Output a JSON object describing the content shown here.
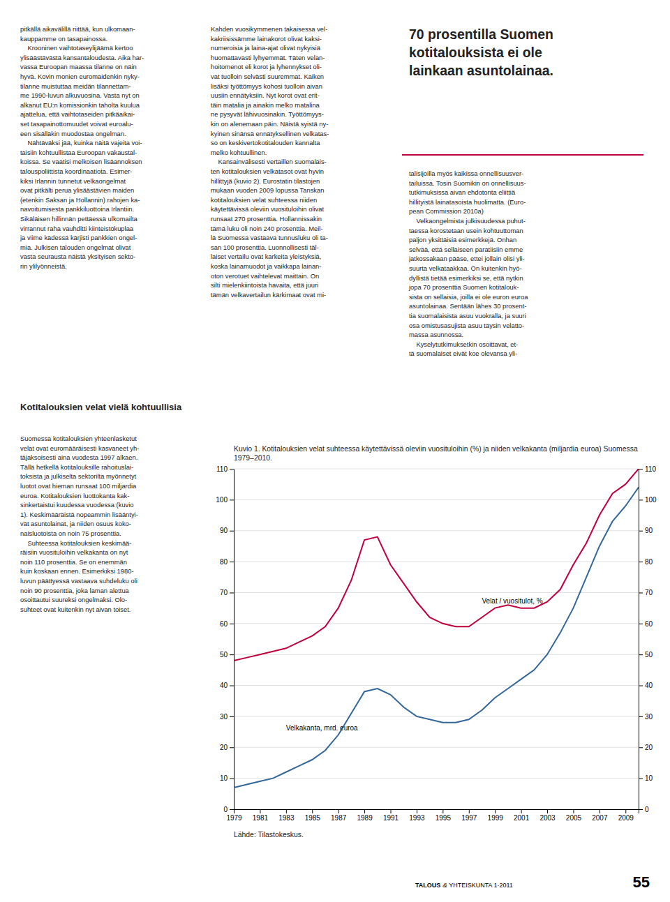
{
  "column1": {
    "text": "pitkällä aikavälillä riittää, kun ulkomaan-\nkauppamme on tasapainossa.\n    Krooninen vaihtotaseylijäämä kertoo\nylisäästävästä kansantaloudesta. Aika har-\nvassa Euroopan maassa tilanne on näin\nhyvä. Kovin monien euromaidenkin nyky-\ntilanne muistuttaa meidän tilannettam-\nme 1990-luvun alkuvuosina. Vasta nyt on\nalkanut EU:n komissionkin taholta kuulua\najattelua, että vaihtotaseiden pitkäaikai-\nset tasapainottomuudet voivat euroalu-\neen sisälläkin muodostaa ongelman.\n    Nähtäväksi jää, kuinka näitä vajeita voi-\ntaisiin kohtuullistaa Euroopan vakaustal-\nkoissa. Se vaatisi melkoisen lisäannoksen\ntalouspoliittista koordinaatiota. Esimer-\nkiksi Irlannin tunnetut velkaongelmat\novat pitkälti perua ylisäästävien maiden\n(etenkin Saksan ja Hollannin) rahojen ka-\nnavoitumisesta pankkiluottoina Irlantiin.\nSikäläisen hillinnän pettäessä ulkomailta\nvirrannut raha vauhditti kiinteistökuplaa\nja viime kädessä kärjisti pankkien ongel-\nmia. Julkisen talouden ongelmat olivat\nvasta seurausta näistä yksityisen sekto-\nrin ylilyönneistä.",
    "heading": "Kotitalouksien velat vielä kohtuullisia",
    "text2": "Suomessa kotitalouksien yhteenlasketut\nvelat ovat euromääräisesti kasvaneet yh-\ntäjaksoisesti aina vuodesta 1997 alkaen.\nTällä hetkellä kotitalouksille rahoituslai-\ntoksista ja julkiselta sektorilta myönnetyt\nluotot ovat hieman runsaat 100 miljardia\neuroa. Kotitalouksien luottokanta kak-\nsinkertaistui kuudessa vuodessa (kuvio\n1). Keskimääräistä nopeammin lisääntyi-\nvät asuntolainat, ja niiden osuus koko-\nnaisluotoista on noin 75 prosenttia.\n    Suhteessa kotitalouksien keskimää-\nräisiin vuosituloihin velkakanta on nyt\nnoin 110 prosenttia. Se on enemmän\nkuin koskaan ennen. Esimerkiksi 1980-\nluvun päättyessä vastaava suhdeluku oli\nnoin 90 prosenttia, joka laman alettua\nosoittautui suureksi ongelmaksi. Olo-\nsuhteet ovat kuitenkin nyt aivan toiset."
  },
  "column2": {
    "text": "Kahden vuosikymmenen takaisessa vel-\nkakriisissämme lainakorot olivat kaksi-\nnumeroisia ja laina-ajat olivat nykyisiä\nhuomattavasti lyhyemmät. Täten velan-\nhoitomenot eli korot ja lyhennykset oli-\nvat tuolloin selvästi suuremmat. Kaiken\nlisäksi työttömyys kohosi tuolloin aivan\nuusiin ennätyksiin. Nyt korot ovat erit-\ntäin matalia ja ainakin melko matalina\nne pysyvät lähivuosinakin. Työttömyys-\nkin on alenemaan päin. Näistä syistä ny-\nkyinen sinänsä ennätyksellinen velkatas-\nso on keskivertokotitalouden kannalta\nmelko kohtuullinen.\n    Kansainvälisesti vertaillen suomalais-\nten kotitalouksien velkatasot ovat hyvin\nhillittyjä (kuvio 2). Eurostatin tilastojen\nmukaan vuoden 2009 lopussa Tanskan\nkotitalouksien velat suhteessa niiden\nkäytettävissä oleviin vuosituloihin olivat\nrunsaat 270 prosenttia. Hollannissakin\ntämä luku oli noin 240 prosenttia. Meil-\nlä Suomessa vastaava tunnusluku oli ta-\nsan 100 prosenttia. Luonnollisesti täl-\nlaiset vertailu ovat karkeita yleistyksiä,\nkoska lainamuodot ja vaikkapa lainan-\noton verotuet vaihtelevat maittain. On\nsilti mielenkiintoista havaita, että juuri\ntämän velkavertailun kärkimaat ovat mi-"
  },
  "column3": {
    "callout": "70 prosentilla Suomen\nkotitalouksista ei ole\nlainkaan asuntolainaa.",
    "text": "talisijoilla myös kaikissa onnellisuusver-\ntailuissa. Tosin Suomikin on onnellisuus-\ntutkimuksissa aivan ehdotonta eliittiä\nhillityistä lainatasoista huolimatta. (Euro-\npean Commission 2010a)\n    Velkaongelmista julkisuudessa puhut-\ntaessa korostetaan usein kohtuuttoman\npaljon yksittäisiä esimerkkejä. Onhan\nselvää, että sellaiseen paratiisiin emme\njatkossakaan pääse, ettei jollain olisi yli-\nsuurta velkataakkaa. On kuitenkin hyö-\ndyllistä tietää esimerkiksi se, että nytkin\njopa 70 prosenttia Suomen kotitalouk-\nsista on sellaisia, joilla ei ole euron euroa\nasuntolainaa. Sentään lähes 30 prosent-\ntia suomalaisista asuu vuokralla, ja suuri\nosa omistusasujista asuu täysin velatto-\nmassa asunnossa.\n    Kyselytutkimuksetkin osoittavat, et-\ntä suomalaiset eivät koe olevansa yli-",
    "separator_color": "#c0003c"
  },
  "footer": {
    "magazine": "TALOUS",
    "amp": "&",
    "issue": " YHTEISKUNTA 1·2011",
    "page": "55"
  },
  "chart_data": {
    "type": "line",
    "title": "Kuvio 1. Kotitalouksien velat suhteessa käytettävissä oleviin vuosituloihin (%) ja niiden velkakanta (miljardia euroa) Suomessa 1979–2010.",
    "source": "Lähde: Tilastokeskus.",
    "x": [
      1979,
      1980,
      1981,
      1982,
      1983,
      1984,
      1985,
      1986,
      1987,
      1988,
      1989,
      1990,
      1991,
      1992,
      1993,
      1994,
      1995,
      1996,
      1997,
      1998,
      1999,
      2000,
      2001,
      2002,
      2003,
      2004,
      2005,
      2006,
      2007,
      2008,
      2009,
      2010
    ],
    "series": [
      {
        "color": "#c0003c",
        "values": [
          48,
          49,
          50,
          51,
          52,
          54,
          56,
          59,
          65,
          74,
          87,
          88,
          79,
          73,
          67,
          62,
          60,
          59,
          59,
          62,
          65,
          66,
          65,
          65,
          67,
          71,
          79,
          86,
          95,
          102,
          105,
          110
        ]
      },
      {
        "color": "#336699",
        "axis": "y2",
        "values": [
          7,
          8,
          9,
          10,
          12,
          14,
          16,
          19,
          24,
          31,
          38,
          39,
          37,
          33,
          30,
          29,
          28,
          28,
          29,
          32,
          36,
          39,
          42,
          45,
          50,
          57,
          65,
          75,
          85,
          93,
          98,
          104
        ]
      }
    ],
    "annotations": [
      {
        "text": "Velat / vuositulot, %",
        "x": 1998,
        "y": 67
      },
      {
        "text": "Velkakanta, mrd. euroa",
        "x": 1983,
        "y": 26
      }
    ],
    "xlim": [
      1979,
      2010
    ],
    "xticks": [
      1979,
      1981,
      1983,
      1985,
      1987,
      1989,
      1991,
      1993,
      1995,
      1997,
      1999,
      2001,
      2003,
      2005,
      2007,
      2009
    ],
    "ylim": [
      0,
      110
    ],
    "yticks": [
      0,
      10,
      20,
      30,
      40,
      50,
      60,
      70,
      80,
      90,
      100,
      110
    ],
    "y2lim": [
      0,
      110
    ],
    "y2ticks": [
      0,
      10,
      20,
      30,
      40,
      50,
      60,
      70,
      80,
      90,
      100,
      110
    ],
    "grid": true
  }
}
